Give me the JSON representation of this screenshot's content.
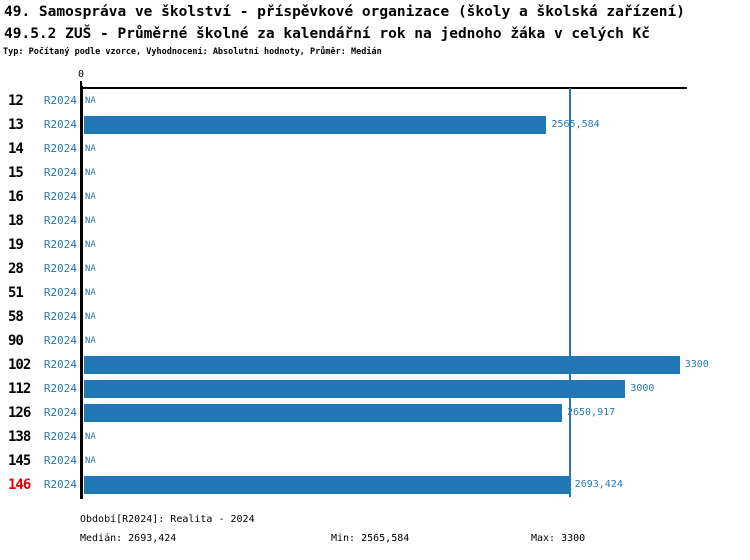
{
  "header": {
    "title_line1": "49. Samospráva ve školství - příspěvkové organizace (školy a školská zařízení)",
    "title_line2": "49.5.2 ZUŠ - Průměrné školné za kalendářní rok na jednoho žáka v celých Kč",
    "subtitle": "Typ: Počítaný podle vzorce, Vyhodnocení: Absolutní hodnoty, Průměr: Medián"
  },
  "chart_data": {
    "type": "bar",
    "orientation": "horizontal",
    "title": "49.5.2 ZUŠ - Průměrné školné za kalendářní rok na jednoho žáka v celých Kč",
    "categories": [
      "12",
      "13",
      "14",
      "15",
      "16",
      "18",
      "19",
      "28",
      "51",
      "58",
      "90",
      "102",
      "112",
      "126",
      "138",
      "145",
      "146"
    ],
    "series_label": "R2024",
    "values": [
      null,
      2565.584,
      null,
      null,
      null,
      null,
      null,
      null,
      null,
      null,
      null,
      3300,
      3000,
      2650.917,
      null,
      null,
      2693.424
    ],
    "value_labels": [
      "NA",
      "2565,584",
      "NA",
      "NA",
      "NA",
      "NA",
      "NA",
      "NA",
      "NA",
      "NA",
      "NA",
      "3300",
      "3000",
      "2650,917",
      "NA",
      "NA",
      "2693,424"
    ],
    "na_label": "NA",
    "highlighted_category": "146",
    "median_value": 2693.424,
    "x_axis": {
      "tick_label": "0",
      "min": 0,
      "max": 3340,
      "grid": false
    },
    "legend_position": "none"
  },
  "footer": {
    "period": "Období[R2024]: Realita - 2024",
    "median": "Medián: 2693,424",
    "min": "Min: 2565,584",
    "max": "Max: 3300"
  },
  "colors": {
    "bar": "#2278b5",
    "accent_text": "#2878b4",
    "median_line": "#2278b5",
    "highlight": "#e60000",
    "axis": "#000000"
  }
}
